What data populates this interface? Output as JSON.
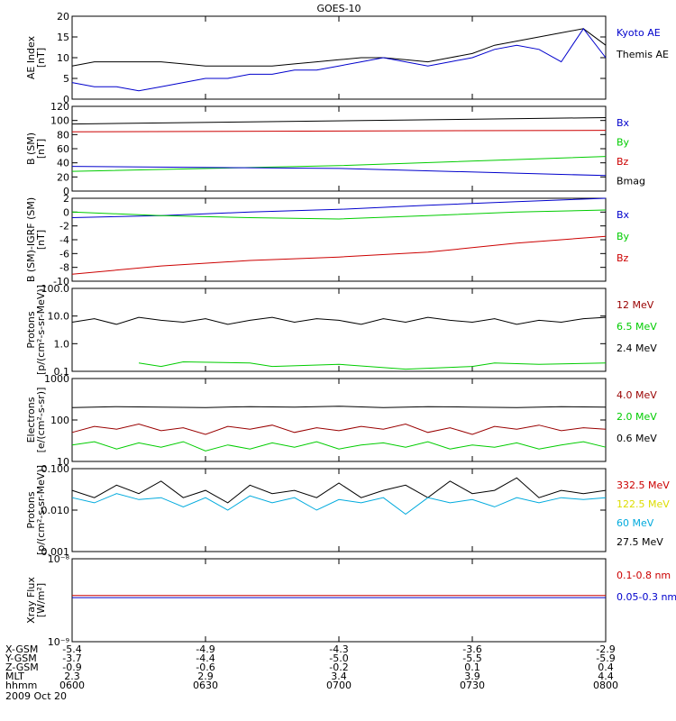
{
  "title": "GOES-10",
  "x_time_labels": [
    "0600",
    "0630",
    "0700",
    "0730",
    "0800"
  ],
  "x_time_minutes": [
    0,
    30,
    60,
    90,
    120
  ],
  "date": "2009 Oct 20",
  "ephemeris": {
    "labels": [
      "X-GSM",
      "Y-GSM",
      "Z-GSM",
      "MLT",
      "hhmm"
    ],
    "rows": [
      [
        "-5.4",
        "-4.9",
        "-4.3",
        "-3.6",
        "-2.9"
      ],
      [
        "-3.7",
        "-4.4",
        "-5.0",
        "-5.5",
        "-5.9"
      ],
      [
        "-0.9",
        "-0.6",
        "-0.2",
        "0.1",
        "0.4"
      ],
      [
        "2.3",
        "2.9",
        "3.4",
        "3.9",
        "4.4"
      ],
      [
        "0600",
        "0630",
        "0700",
        "0730",
        "0800"
      ]
    ]
  },
  "colors": {
    "black": "#000000",
    "blue": "#0000cc",
    "green": "#00cc00",
    "red": "#cc0000",
    "darkred": "#990000",
    "cyan": "#00aadd",
    "yellow": "#dddd00"
  },
  "chart_data": [
    {
      "type": "line",
      "ylabel": [
        "AE Index",
        "[nT]"
      ],
      "ylim": [
        0,
        20
      ],
      "yticks": [
        "0",
        "5",
        "10",
        "15",
        "20"
      ],
      "yticks_values": [
        0,
        5,
        10,
        15,
        20
      ],
      "scale": "linear",
      "legend": [
        {
          "name": "Kyoto AE",
          "color": "#0000cc"
        },
        {
          "name": "Themis AE",
          "color": "#000000"
        }
      ],
      "series": [
        {
          "name": "Themis AE",
          "color": "#000000",
          "x": [
            0,
            5,
            10,
            15,
            20,
            25,
            30,
            35,
            40,
            45,
            50,
            55,
            60,
            65,
            70,
            75,
            80,
            85,
            90,
            95,
            100,
            105,
            110,
            115,
            120
          ],
          "y": [
            8,
            9,
            9,
            9,
            9,
            8.5,
            8,
            8,
            8,
            8,
            8.5,
            9,
            9.5,
            10,
            10,
            9.5,
            9,
            10,
            11,
            13,
            14,
            15,
            16,
            17,
            13
          ]
        },
        {
          "name": "Kyoto AE",
          "color": "#0000cc",
          "x": [
            0,
            5,
            10,
            15,
            20,
            25,
            30,
            35,
            40,
            45,
            50,
            55,
            60,
            65,
            70,
            75,
            80,
            85,
            90,
            95,
            100,
            105,
            110,
            115,
            120
          ],
          "y": [
            4,
            3,
            3,
            2,
            3,
            4,
            5,
            5,
            6,
            6,
            7,
            7,
            8,
            9,
            10,
            9,
            8,
            9,
            10,
            12,
            13,
            12,
            9,
            17,
            10
          ]
        }
      ]
    },
    {
      "type": "line",
      "ylabel": [
        "B (SM)",
        "[nT]"
      ],
      "ylim": [
        0,
        120
      ],
      "yticks": [
        "0",
        "20",
        "40",
        "60",
        "80",
        "100",
        "120"
      ],
      "yticks_values": [
        0,
        20,
        40,
        60,
        80,
        100,
        120
      ],
      "scale": "linear",
      "legend": [
        {
          "name": "Bx",
          "color": "#0000cc"
        },
        {
          "name": "By",
          "color": "#00cc00"
        },
        {
          "name": "Bz",
          "color": "#cc0000"
        },
        {
          "name": "Bmag",
          "color": "#000000"
        }
      ],
      "series": [
        {
          "name": "Bmag",
          "color": "#000000",
          "x": [
            0,
            120
          ],
          "y": [
            95,
            104
          ]
        },
        {
          "name": "Bz",
          "color": "#cc0000",
          "x": [
            0,
            120
          ],
          "y": [
            84,
            86
          ]
        },
        {
          "name": "By",
          "color": "#00cc00",
          "x": [
            0,
            60,
            120
          ],
          "y": [
            28,
            36,
            49
          ]
        },
        {
          "name": "Bx",
          "color": "#0000cc",
          "x": [
            0,
            60,
            120
          ],
          "y": [
            35,
            32,
            22
          ]
        }
      ]
    },
    {
      "type": "line",
      "ylabel": [
        "B (SM)-IGRF (SM)",
        "[nT]"
      ],
      "ylim": [
        -10,
        2
      ],
      "yticks": [
        "-10",
        "-8",
        "-6",
        "-4",
        "-2",
        "0",
        "2"
      ],
      "yticks_values": [
        -10,
        -8,
        -6,
        -4,
        -2,
        0,
        2
      ],
      "scale": "linear",
      "legend": [
        {
          "name": "Bx",
          "color": "#0000cc"
        },
        {
          "name": "By",
          "color": "#00cc00"
        },
        {
          "name": "Bz",
          "color": "#cc0000"
        }
      ],
      "series": [
        {
          "name": "Bx",
          "color": "#0000cc",
          "x": [
            0,
            20,
            40,
            60,
            80,
            100,
            120
          ],
          "y": [
            -0.8,
            -0.5,
            0,
            0.4,
            1,
            1.5,
            2
          ]
        },
        {
          "name": "By",
          "color": "#00cc00",
          "x": [
            0,
            20,
            40,
            60,
            80,
            100,
            120
          ],
          "y": [
            0,
            -0.5,
            -0.8,
            -1,
            -0.5,
            0,
            0.3
          ]
        },
        {
          "name": "Bz",
          "color": "#cc0000",
          "x": [
            0,
            20,
            40,
            60,
            80,
            100,
            120
          ],
          "y": [
            -9,
            -7.8,
            -7,
            -6.5,
            -5.8,
            -4.5,
            -3.5
          ]
        }
      ]
    },
    {
      "type": "line",
      "ylabel": [
        "Protons",
        "[p/(cm²-s-sr-MeV)]"
      ],
      "ylim": [
        0.1,
        100
      ],
      "yticks": [
        "0.1",
        "1.0",
        "10.0",
        "100.0"
      ],
      "yticks_values": [
        0.1,
        1,
        10,
        100
      ],
      "scale": "log",
      "legend": [
        {
          "name": "12 MeV",
          "color": "#990000"
        },
        {
          "name": "6.5 MeV",
          "color": "#00cc00"
        },
        {
          "name": "2.4 MeV",
          "color": "#000000"
        }
      ],
      "series": [
        {
          "name": "2.4 MeV",
          "color": "#000000",
          "x": [
            0,
            5,
            10,
            15,
            20,
            25,
            30,
            35,
            40,
            45,
            50,
            55,
            60,
            65,
            70,
            75,
            80,
            85,
            90,
            95,
            100,
            105,
            110,
            115,
            120
          ],
          "y": [
            6,
            8,
            5,
            9,
            7,
            6,
            8,
            5,
            7,
            9,
            6,
            8,
            7,
            5,
            8,
            6,
            9,
            7,
            6,
            8,
            5,
            7,
            6,
            8,
            9
          ]
        },
        {
          "name": "6.5 MeV",
          "color": "#00cc00",
          "x": [
            15,
            20,
            25,
            40,
            45,
            60,
            75,
            90,
            95,
            105,
            120
          ],
          "y": [
            0.2,
            0.15,
            0.22,
            0.2,
            0.15,
            0.18,
            0.12,
            0.15,
            0.2,
            0.18,
            0.2
          ]
        }
      ]
    },
    {
      "type": "line",
      "ylabel": [
        "Electrons",
        "[e/(cm²-s-sr)]"
      ],
      "ylim": [
        10,
        1000
      ],
      "yticks": [
        "10",
        "100",
        "1000"
      ],
      "yticks_values": [
        10,
        100,
        1000
      ],
      "scale": "log",
      "legend": [
        {
          "name": "4.0 MeV",
          "color": "#990000"
        },
        {
          "name": "2.0 MeV",
          "color": "#00cc00"
        },
        {
          "name": "0.6 MeV",
          "color": "#000000"
        }
      ],
      "series": [
        {
          "name": "0.6 MeV",
          "color": "#000000",
          "x": [
            0,
            10,
            20,
            30,
            40,
            50,
            60,
            70,
            80,
            90,
            100,
            110,
            120
          ],
          "y": [
            200,
            210,
            205,
            200,
            210,
            205,
            215,
            200,
            210,
            205,
            200,
            210,
            205
          ]
        },
        {
          "name": "4.0 MeV",
          "color": "#990000",
          "x": [
            0,
            5,
            10,
            15,
            20,
            25,
            30,
            35,
            40,
            45,
            50,
            55,
            60,
            65,
            70,
            75,
            80,
            85,
            90,
            95,
            100,
            105,
            110,
            115,
            120
          ],
          "y": [
            50,
            70,
            60,
            80,
            55,
            65,
            45,
            70,
            60,
            75,
            50,
            65,
            55,
            70,
            60,
            80,
            50,
            65,
            45,
            70,
            60,
            75,
            55,
            65,
            60
          ]
        },
        {
          "name": "2.0 MeV",
          "color": "#00cc00",
          "x": [
            0,
            5,
            10,
            15,
            20,
            25,
            30,
            35,
            40,
            45,
            50,
            55,
            60,
            65,
            70,
            75,
            80,
            85,
            90,
            95,
            100,
            105,
            110,
            115,
            120
          ],
          "y": [
            25,
            30,
            20,
            28,
            22,
            30,
            18,
            25,
            20,
            28,
            22,
            30,
            20,
            25,
            28,
            22,
            30,
            20,
            25,
            22,
            28,
            20,
            25,
            30,
            22
          ]
        }
      ]
    },
    {
      "type": "line",
      "ylabel": [
        "Protons",
        "[p/(cm²-s-sr-MeV)]"
      ],
      "ylim": [
        0.001,
        0.1
      ],
      "yticks": [
        "0.001",
        "0.010",
        "0.100"
      ],
      "yticks_values": [
        0.001,
        0.01,
        0.1
      ],
      "scale": "log",
      "legend": [
        {
          "name": "332.5 MeV",
          "color": "#cc0000"
        },
        {
          "name": "122.5 MeV",
          "color": "#dddd00"
        },
        {
          "name": "60 MeV",
          "color": "#00aadd"
        },
        {
          "name": "27.5 MeV",
          "color": "#000000"
        }
      ],
      "series": [
        {
          "name": "27.5 MeV",
          "color": "#000000",
          "x": [
            0,
            5,
            10,
            15,
            20,
            25,
            30,
            35,
            40,
            45,
            50,
            55,
            60,
            65,
            70,
            75,
            80,
            85,
            90,
            95,
            100,
            105,
            110,
            115,
            120
          ],
          "y": [
            0.03,
            0.02,
            0.04,
            0.025,
            0.05,
            0.02,
            0.03,
            0.015,
            0.04,
            0.025,
            0.03,
            0.02,
            0.045,
            0.02,
            0.03,
            0.04,
            0.02,
            0.05,
            0.025,
            0.03,
            0.06,
            0.02,
            0.03,
            0.025,
            0.03
          ]
        },
        {
          "name": "60 MeV",
          "color": "#00aadd",
          "x": [
            0,
            5,
            10,
            15,
            20,
            25,
            30,
            35,
            40,
            45,
            50,
            55,
            60,
            65,
            70,
            75,
            80,
            85,
            90,
            95,
            100,
            105,
            110,
            115,
            120
          ],
          "y": [
            0.02,
            0.015,
            0.025,
            0.018,
            0.02,
            0.012,
            0.02,
            0.01,
            0.022,
            0.015,
            0.02,
            0.01,
            0.018,
            0.015,
            0.02,
            0.008,
            0.02,
            0.015,
            0.018,
            0.012,
            0.02,
            0.015,
            0.02,
            0.018,
            0.02
          ]
        }
      ]
    },
    {
      "type": "line",
      "ylabel": [
        "Xray Flux",
        "[W/m²]"
      ],
      "ylim": [
        1e-09,
        1e-08
      ],
      "yticks": [
        "10⁻⁹",
        "10⁻⁸"
      ],
      "yticks_values": [
        1e-09,
        1e-08
      ],
      "scale": "log",
      "legend": [
        {
          "name": "0.1-0.8 nm",
          "color": "#cc0000"
        },
        {
          "name": "0.05-0.3 nm",
          "color": "#0000cc"
        }
      ],
      "series": [
        {
          "name": "0.1-0.8 nm",
          "color": "#cc0000",
          "x": [
            0,
            120
          ],
          "y": [
            3.6e-09,
            3.6e-09
          ]
        },
        {
          "name": "0.05-0.3 nm",
          "color": "#0000cc",
          "x": [
            0,
            120
          ],
          "y": [
            3.4e-09,
            3.4e-09
          ]
        }
      ]
    }
  ]
}
